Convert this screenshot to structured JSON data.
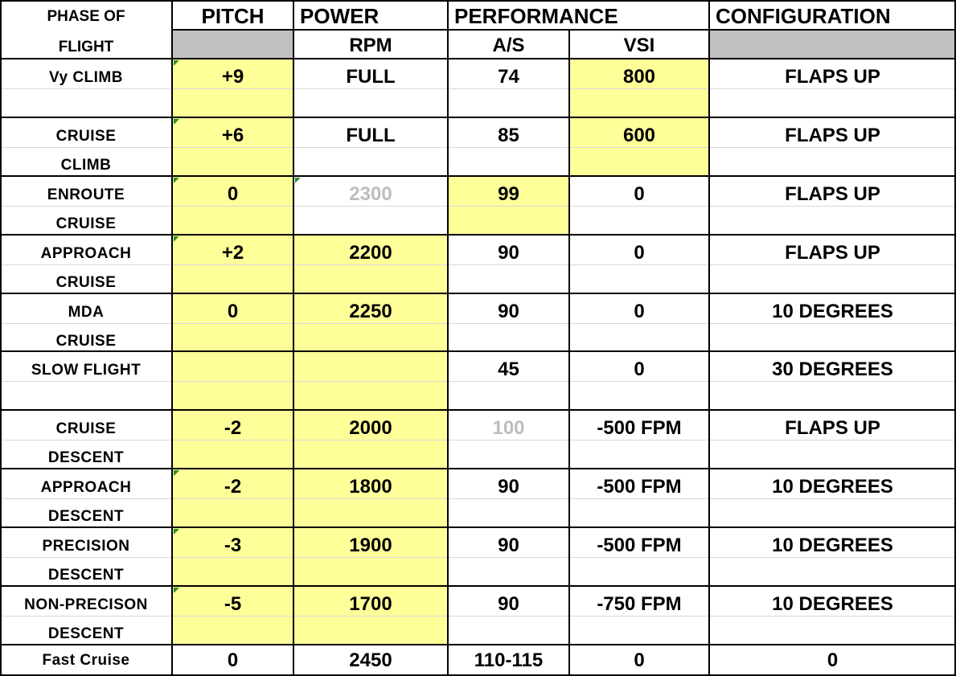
{
  "header": {
    "phase": [
      "PHASE OF",
      "FLIGHT"
    ],
    "pitch": "PITCH",
    "power": "POWER",
    "power_unit": "RPM",
    "performance": "PERFORMANCE",
    "airspeed": "A/S",
    "vsi": "VSI",
    "configuration": "CONFIGURATION"
  },
  "rows": [
    {
      "phase": [
        "Vy CLIMB"
      ],
      "pitch": "+9",
      "power": "FULL",
      "airspeed": "74",
      "vsi": "800",
      "configuration": "FLAPS UP"
    },
    {
      "phase": [
        "CRUISE",
        "CLIMB"
      ],
      "pitch": "+6",
      "power": "FULL",
      "airspeed": "85",
      "vsi": "600",
      "configuration": "FLAPS UP"
    },
    {
      "phase": [
        "ENROUTE",
        "CRUISE"
      ],
      "pitch": "0",
      "power": "2300",
      "airspeed": "99",
      "vsi": "0",
      "configuration": "FLAPS UP"
    },
    {
      "phase": [
        "APPROACH",
        "CRUISE"
      ],
      "pitch": "+2",
      "power": "2200",
      "airspeed": "90",
      "vsi": "0",
      "configuration": "FLAPS UP"
    },
    {
      "phase": [
        "MDA",
        "CRUISE"
      ],
      "pitch": "0",
      "power": "2250",
      "airspeed": "90",
      "vsi": "0",
      "configuration": "10 DEGREES"
    },
    {
      "phase": [
        "SLOW FLIGHT"
      ],
      "airspeed": "45",
      "vsi": "0",
      "configuration": "30 DEGREES"
    },
    {
      "phase": [
        "CRUISE",
        "DESCENT"
      ],
      "pitch": "-2",
      "power": "2000",
      "airspeed": "100",
      "vsi": "-500 FPM",
      "configuration": "FLAPS UP"
    },
    {
      "phase": [
        "APPROACH",
        "DESCENT"
      ],
      "pitch": "-2",
      "power": "1800",
      "airspeed": "90",
      "vsi": "-500 FPM",
      "configuration": "10 DEGREES"
    },
    {
      "phase": [
        "PRECISION",
        "DESCENT"
      ],
      "pitch": "-3",
      "power": "1900",
      "airspeed": "90",
      "vsi": "-500 FPM",
      "configuration": "10 DEGREES"
    },
    {
      "phase": [
        "NON-PRECISON",
        "DESCENT"
      ],
      "pitch": "-5",
      "power": "1700",
      "airspeed": "90",
      "vsi": "-750 FPM",
      "configuration": "10 DEGREES"
    },
    {
      "phase": [
        "Fast Cruise"
      ],
      "pitch": "0",
      "power": "2450",
      "airspeed": "110-115",
      "vsi": "0",
      "configuration": "0"
    }
  ]
}
